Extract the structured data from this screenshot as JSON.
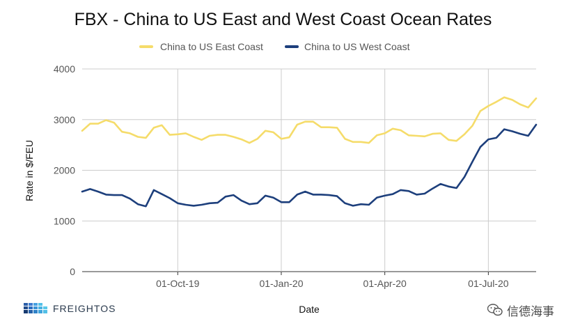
{
  "chart_data": {
    "type": "line",
    "title": "FBX - China to US East and West Coast Ocean Rates",
    "xlabel": "Date",
    "ylabel": "Rate in $/FEU",
    "ylim": [
      0,
      4000
    ],
    "yticks": [
      0,
      1000,
      2000,
      3000,
      4000
    ],
    "xtick_labels": [
      "01-Oct-19",
      "01-Jan-20",
      "01-Apr-20",
      "01-Jul-20"
    ],
    "xtick_index": [
      12,
      25,
      38,
      51
    ],
    "grid": true,
    "legend_position": "top",
    "series": [
      {
        "name": "China to US East Coast",
        "color": "#f5dc6a",
        "values": [
          2780,
          2920,
          2920,
          2990,
          2940,
          2760,
          2730,
          2660,
          2640,
          2840,
          2890,
          2700,
          2710,
          2730,
          2660,
          2600,
          2680,
          2700,
          2700,
          2660,
          2610,
          2540,
          2620,
          2780,
          2750,
          2620,
          2650,
          2900,
          2960,
          2960,
          2850,
          2850,
          2840,
          2620,
          2560,
          2560,
          2540,
          2690,
          2730,
          2820,
          2790,
          2690,
          2680,
          2670,
          2720,
          2730,
          2600,
          2580,
          2710,
          2880,
          3170,
          3270,
          3350,
          3440,
          3390,
          3300,
          3240,
          3420
        ]
      },
      {
        "name": "China to US West Coast",
        "color": "#1d3f7c",
        "values": [
          1580,
          1630,
          1580,
          1520,
          1510,
          1510,
          1440,
          1330,
          1290,
          1610,
          1530,
          1450,
          1350,
          1320,
          1300,
          1320,
          1350,
          1360,
          1480,
          1510,
          1400,
          1330,
          1350,
          1500,
          1460,
          1370,
          1370,
          1520,
          1580,
          1520,
          1520,
          1510,
          1490,
          1350,
          1300,
          1330,
          1320,
          1460,
          1500,
          1530,
          1610,
          1590,
          1520,
          1540,
          1640,
          1730,
          1680,
          1650,
          1870,
          2170,
          2460,
          2610,
          2640,
          2810,
          2770,
          2720,
          2680,
          2900
        ]
      }
    ]
  },
  "footer": {
    "brand": "FREIGHTOS",
    "watermark": "信德海事"
  }
}
